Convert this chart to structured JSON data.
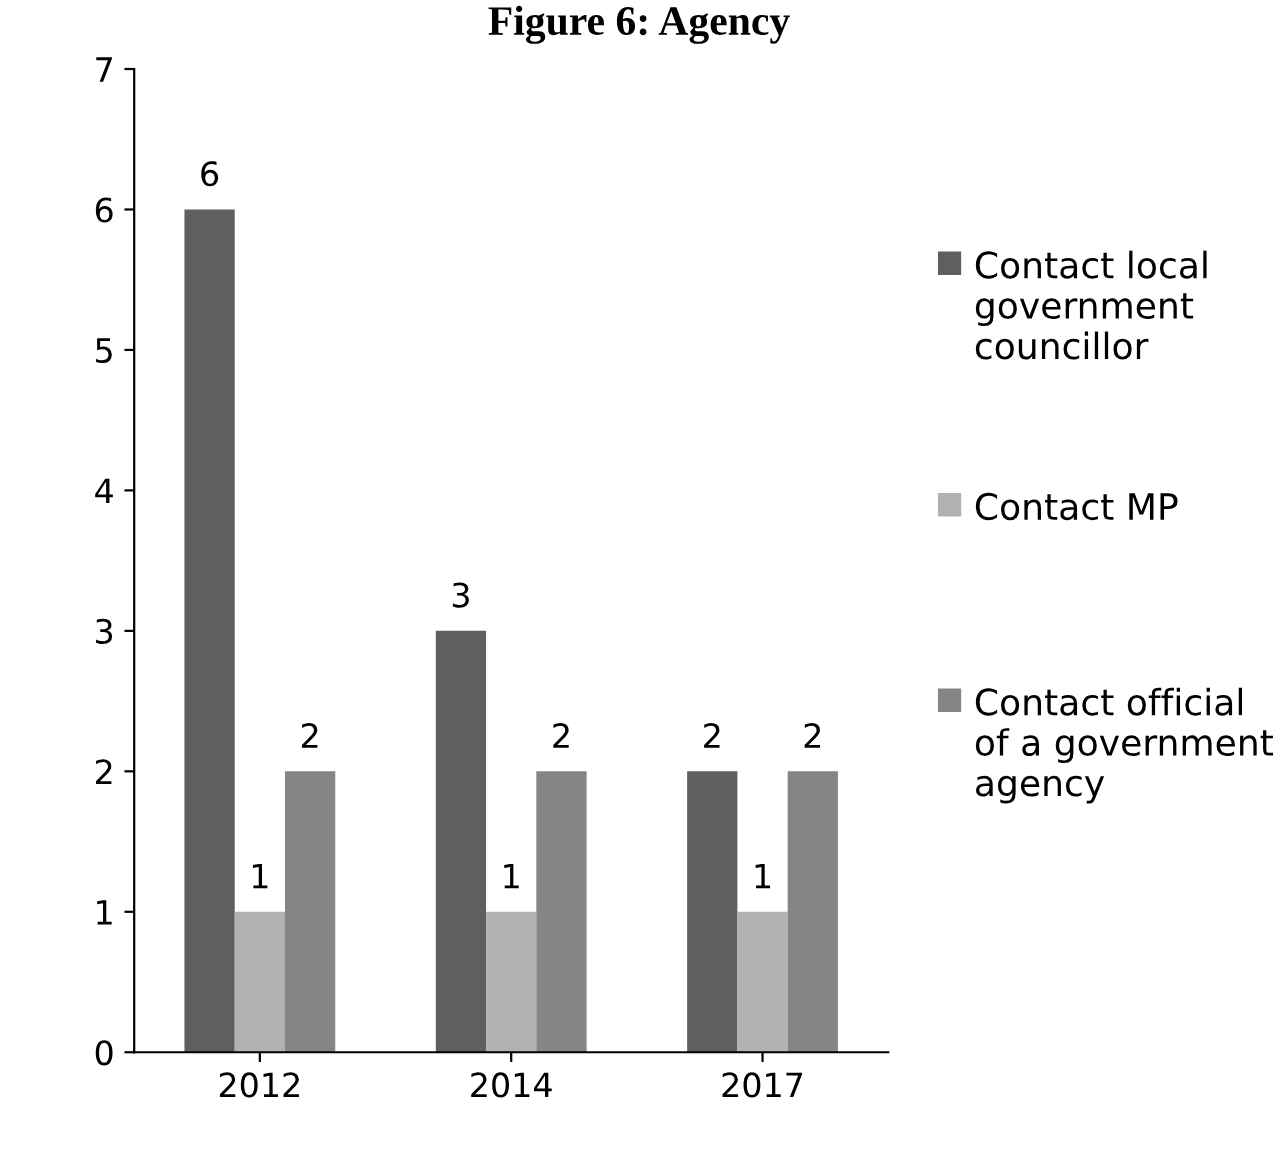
{
  "chart_data": {
    "type": "bar",
    "title": "Figure 6: Agency",
    "categories": [
      "2012",
      "2014",
      "2017"
    ],
    "series": [
      {
        "name": "Contact local government councillor",
        "color": "#5f5f5f",
        "values": [
          6,
          3,
          2
        ]
      },
      {
        "name": "Contact MP",
        "color": "#b2b2b2",
        "values": [
          1,
          1,
          1
        ]
      },
      {
        "name": "Contact official of a government agency",
        "color": "#858585",
        "values": [
          2,
          2,
          2
        ]
      }
    ],
    "ylim": [
      0,
      7
    ],
    "yticks": [
      0,
      1,
      2,
      3,
      4,
      5,
      6,
      7
    ],
    "grid": false,
    "legend": "right",
    "data_labels": true
  }
}
